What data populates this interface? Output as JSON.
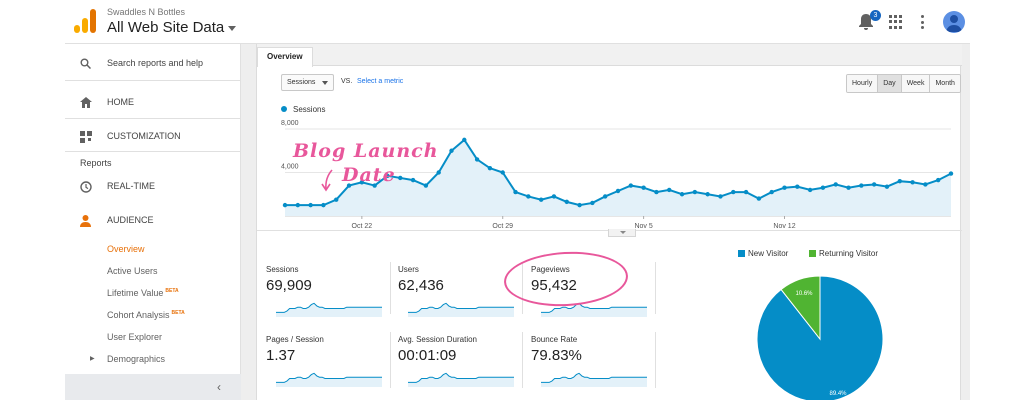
{
  "header": {
    "account_name": "Swaddles N Bottles",
    "property_view": "All Web Site Data",
    "notifications_count": "3"
  },
  "sidebar": {
    "search_label": "Search reports and help",
    "home_label": "HOME",
    "customization_label": "CUSTOMIZATION",
    "reports_heading": "Reports",
    "realtime_label": "REAL-TIME",
    "audience_label": "AUDIENCE",
    "audience_items": [
      {
        "label": "Overview",
        "badge": ""
      },
      {
        "label": "Active Users",
        "badge": ""
      },
      {
        "label": "Lifetime Value",
        "badge": "BETA"
      },
      {
        "label": "Cohort Analysis",
        "badge": "BETA"
      },
      {
        "label": "User Explorer",
        "badge": ""
      },
      {
        "label": "Demographics",
        "badge": ""
      }
    ],
    "collapse_icon": "chevron-left-icon"
  },
  "tabs": {
    "overview": "Overview"
  },
  "controls": {
    "metric": "Sessions",
    "vs": "VS.",
    "select_metric": "Select a metric",
    "periods": [
      "Hourly",
      "Day",
      "Week",
      "Month"
    ],
    "active_period": "Day"
  },
  "chart_data": {
    "type": "line",
    "series": [
      {
        "name": "Sessions",
        "values": [
          1000,
          1000,
          1000,
          1000,
          1500,
          2800,
          3100,
          2800,
          3700,
          3500,
          3300,
          2800,
          4000,
          6000,
          7000,
          5200,
          4400,
          4000,
          2200,
          1800,
          1500,
          1800,
          1300,
          1000,
          1200,
          1800,
          2300,
          2800,
          2600,
          2200,
          2400,
          2000,
          2200,
          2000,
          1800,
          2200,
          2200,
          1600,
          2200,
          2600,
          2700,
          2400,
          2600,
          2900,
          2600,
          2800,
          2900,
          2700,
          3200,
          3100,
          2900,
          3300,
          3900
        ]
      }
    ],
    "x_ticks": [
      "Oct 22",
      "Oct 29",
      "Nov 5",
      "Nov 12"
    ],
    "y_ticks": [
      "8,000",
      "4,000"
    ],
    "ylim": [
      0,
      8000
    ],
    "grid": true,
    "color": "#058dc7"
  },
  "annotation": {
    "line1": "Blog Launch",
    "line2": "Date",
    "color": "#e8579b"
  },
  "metrics": [
    {
      "name": "Sessions",
      "value": "69,909"
    },
    {
      "name": "Users",
      "value": "62,436"
    },
    {
      "name": "Pageviews",
      "value": "95,432"
    },
    {
      "name": "Pages / Session",
      "value": "1.37"
    },
    {
      "name": "Avg. Session Duration",
      "value": "00:01:09"
    },
    {
      "name": "Bounce Rate",
      "value": "79.83%"
    }
  ],
  "pie": {
    "legend": [
      {
        "label": "New Visitor",
        "color": "#058dc7"
      },
      {
        "label": "Returning Visitor",
        "color": "#50b432"
      }
    ],
    "new_pct": "89.4%",
    "returning_pct": "10.6%",
    "new_fraction": 0.894
  }
}
